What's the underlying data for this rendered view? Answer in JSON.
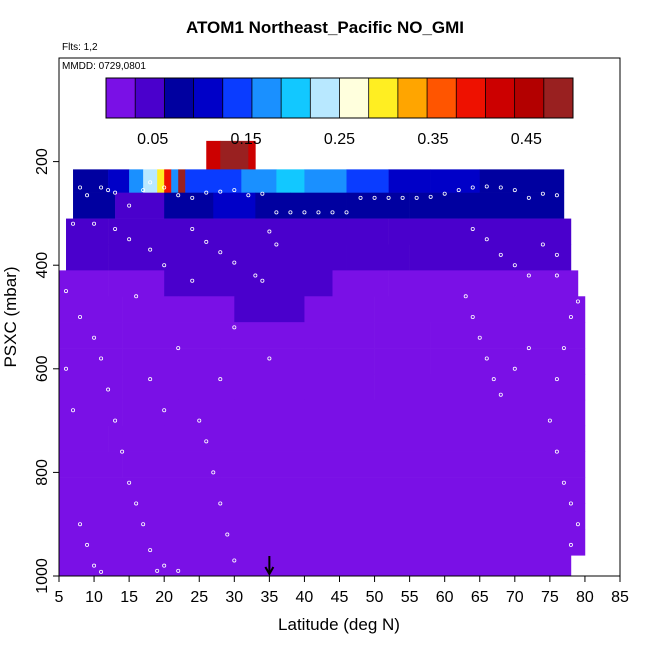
{
  "figure": {
    "title": "ATOM1 Northeast_Pacific NO_GMI",
    "flights_label": "Flts: 1,2",
    "date_label": "MMDD: 0729,0801"
  },
  "chart_data": {
    "type": "heatmap",
    "title": "ATOM1 Northeast_Pacific NO_GMI",
    "xlabel": "Latitude (deg N)",
    "ylabel": "PSXC (mbar)",
    "xlim": [
      5,
      85
    ],
    "ylim": [
      1000,
      0
    ],
    "x_ticks": [
      5,
      10,
      15,
      20,
      25,
      30,
      35,
      40,
      45,
      50,
      55,
      60,
      65,
      70,
      75,
      80,
      85
    ],
    "y_ticks": [
      200,
      400,
      600,
      800,
      1000
    ],
    "colorbar": {
      "range": [
        0,
        0.5
      ],
      "tick_values": [
        0.05,
        0.15,
        0.25,
        0.35,
        0.45
      ],
      "tick_labels": [
        "0.05",
        "0.15",
        "0.25",
        "0.35",
        "0.45"
      ],
      "colors": [
        "#7a10e6",
        "#4a00cc",
        "#0000a0",
        "#0000c8",
        "#0a3cff",
        "#1a90ff",
        "#12c8ff",
        "#b8e8ff",
        "#ffffdd",
        "#ffee22",
        "#ffa500",
        "#ff5500",
        "#ee1100",
        "#cc0000",
        "#b30000",
        "#992020"
      ]
    },
    "marker": {
      "latitude": 35,
      "direction": "down"
    },
    "layers": [
      {
        "p_top": 160,
        "p_bot": 215,
        "segments": [
          [
            26,
            28,
            0.42
          ],
          [
            28,
            32,
            0.48
          ],
          [
            32,
            33,
            0.43
          ]
        ]
      },
      {
        "p_top": 215,
        "p_bot": 260,
        "segments": [
          [
            7,
            12,
            0.08
          ],
          [
            12,
            15,
            0.11
          ],
          [
            15,
            17,
            0.16
          ],
          [
            17,
            19,
            0.22
          ],
          [
            19,
            20,
            0.3
          ],
          [
            20,
            21,
            0.38
          ],
          [
            21,
            22,
            0.18
          ],
          [
            22,
            23,
            0.47
          ],
          [
            23,
            27,
            0.14
          ],
          [
            27,
            31,
            0.15
          ],
          [
            31,
            36,
            0.18
          ],
          [
            36,
            40,
            0.2
          ],
          [
            40,
            46,
            0.17
          ],
          [
            46,
            52,
            0.14
          ],
          [
            52,
            58,
            0.12
          ],
          [
            58,
            65,
            0.1
          ],
          [
            65,
            72,
            0.09
          ],
          [
            72,
            77,
            0.08
          ]
        ]
      },
      {
        "p_top": 260,
        "p_bot": 310,
        "segments": [
          [
            7,
            13,
            0.07
          ],
          [
            13,
            20,
            0.06
          ],
          [
            20,
            27,
            0.08
          ],
          [
            27,
            33,
            0.1
          ],
          [
            33,
            38,
            0.09
          ],
          [
            38,
            46,
            0.08
          ],
          [
            46,
            55,
            0.07
          ],
          [
            55,
            62,
            0.075
          ],
          [
            62,
            70,
            0.08
          ],
          [
            70,
            77,
            0.09
          ]
        ]
      },
      {
        "p_top": 310,
        "p_bot": 360,
        "segments": [
          [
            6,
            12,
            0.055
          ],
          [
            12,
            20,
            0.045
          ],
          [
            20,
            28,
            0.06
          ],
          [
            28,
            36,
            0.055
          ],
          [
            36,
            44,
            0.05
          ],
          [
            44,
            52,
            0.045
          ],
          [
            52,
            60,
            0.05
          ],
          [
            60,
            68,
            0.045
          ],
          [
            68,
            78,
            0.05
          ]
        ]
      },
      {
        "p_top": 360,
        "p_bot": 410,
        "segments": [
          [
            6,
            12,
            0.035
          ],
          [
            12,
            22,
            0.04
          ],
          [
            22,
            30,
            0.05
          ],
          [
            30,
            38,
            0.045
          ],
          [
            38,
            46,
            0.04
          ],
          [
            46,
            55,
            0.045
          ],
          [
            55,
            62,
            0.04
          ],
          [
            62,
            70,
            0.035
          ],
          [
            70,
            78,
            0.04
          ]
        ]
      },
      {
        "p_top": 410,
        "p_bot": 460,
        "segments": [
          [
            5,
            12,
            0.02
          ],
          [
            12,
            20,
            0.025
          ],
          [
            20,
            28,
            0.035
          ],
          [
            28,
            36,
            0.04
          ],
          [
            36,
            44,
            0.035
          ],
          [
            44,
            52,
            0.03
          ],
          [
            52,
            60,
            0.025
          ],
          [
            60,
            70,
            0.02
          ],
          [
            70,
            79,
            0.02
          ]
        ]
      },
      {
        "p_top": 460,
        "p_bot": 510,
        "segments": [
          [
            5,
            14,
            0.015
          ],
          [
            14,
            22,
            0.02
          ],
          [
            22,
            30,
            0.028
          ],
          [
            30,
            40,
            0.032
          ],
          [
            40,
            50,
            0.025
          ],
          [
            50,
            60,
            0.02
          ],
          [
            60,
            70,
            0.015
          ],
          [
            70,
            80,
            0.012
          ]
        ]
      },
      {
        "p_top": 510,
        "p_bot": 560,
        "segments": [
          [
            5,
            14,
            0.012
          ],
          [
            14,
            22,
            0.018
          ],
          [
            22,
            30,
            0.025
          ],
          [
            30,
            40,
            0.03
          ],
          [
            40,
            50,
            0.025
          ],
          [
            50,
            58,
            0.02
          ],
          [
            58,
            70,
            0.012
          ],
          [
            70,
            80,
            0.01
          ]
        ]
      },
      {
        "p_top": 560,
        "p_bot": 610,
        "segments": [
          [
            5,
            14,
            0.01
          ],
          [
            14,
            22,
            0.015
          ],
          [
            22,
            28,
            0.022
          ],
          [
            28,
            35,
            0.03
          ],
          [
            35,
            42,
            0.025
          ],
          [
            42,
            50,
            0.02
          ],
          [
            50,
            58,
            0.015
          ],
          [
            58,
            70,
            0.01
          ],
          [
            70,
            80,
            0.008
          ]
        ]
      },
      {
        "p_top": 610,
        "p_bot": 660,
        "segments": [
          [
            5,
            14,
            0.008
          ],
          [
            14,
            22,
            0.012
          ],
          [
            22,
            30,
            0.018
          ],
          [
            30,
            40,
            0.015
          ],
          [
            40,
            50,
            0.01
          ],
          [
            50,
            80,
            0.006
          ]
        ]
      },
      {
        "p_top": 660,
        "p_bot": 710,
        "segments": [
          [
            5,
            14,
            0.006
          ],
          [
            14,
            22,
            0.01
          ],
          [
            22,
            30,
            0.012
          ],
          [
            30,
            40,
            0.01
          ],
          [
            40,
            80,
            0.005
          ]
        ]
      },
      {
        "p_top": 710,
        "p_bot": 760,
        "segments": [
          [
            5,
            12,
            0.005
          ],
          [
            12,
            20,
            0.01
          ],
          [
            20,
            28,
            0.008
          ],
          [
            28,
            80,
            0.004
          ]
        ]
      },
      {
        "p_top": 760,
        "p_bot": 810,
        "segments": [
          [
            5,
            14,
            0.004
          ],
          [
            14,
            28,
            0.006
          ],
          [
            28,
            80,
            0.003
          ]
        ]
      },
      {
        "p_top": 810,
        "p_bot": 860,
        "segments": [
          [
            5,
            80,
            0.003
          ]
        ]
      },
      {
        "p_top": 860,
        "p_bot": 910,
        "segments": [
          [
            5,
            80,
            0.002
          ]
        ]
      },
      {
        "p_top": 910,
        "p_bot": 960,
        "segments": [
          [
            5,
            80,
            0.002
          ]
        ]
      },
      {
        "p_top": 960,
        "p_bot": 1000,
        "segments": [
          [
            5,
            78,
            0.002
          ]
        ]
      }
    ],
    "flight_points": [
      [
        8,
        250
      ],
      [
        9,
        265
      ],
      [
        11,
        250
      ],
      [
        12,
        255
      ],
      [
        13,
        260
      ],
      [
        15,
        285
      ],
      [
        17,
        255
      ],
      [
        18,
        240
      ],
      [
        20,
        250
      ],
      [
        22,
        265
      ],
      [
        24,
        270
      ],
      [
        26,
        260
      ],
      [
        28,
        258
      ],
      [
        30,
        255
      ],
      [
        32,
        265
      ],
      [
        34,
        262
      ],
      [
        36,
        298
      ],
      [
        38,
        298
      ],
      [
        40,
        298
      ],
      [
        42,
        298
      ],
      [
        44,
        298
      ],
      [
        46,
        298
      ],
      [
        48,
        270
      ],
      [
        50,
        270
      ],
      [
        52,
        270
      ],
      [
        54,
        270
      ],
      [
        56,
        270
      ],
      [
        58,
        268
      ],
      [
        60,
        262
      ],
      [
        62,
        255
      ],
      [
        64,
        250
      ],
      [
        66,
        248
      ],
      [
        68,
        250
      ],
      [
        70,
        255
      ],
      [
        72,
        270
      ],
      [
        74,
        262
      ],
      [
        76,
        265
      ],
      [
        7,
        320
      ],
      [
        10,
        320
      ],
      [
        13,
        330
      ],
      [
        15,
        350
      ],
      [
        18,
        370
      ],
      [
        20,
        400
      ],
      [
        24,
        330
      ],
      [
        26,
        355
      ],
      [
        28,
        375
      ],
      [
        30,
        395
      ],
      [
        35,
        335
      ],
      [
        36,
        360
      ],
      [
        33,
        420
      ],
      [
        34,
        430
      ],
      [
        64,
        330
      ],
      [
        66,
        350
      ],
      [
        68,
        380
      ],
      [
        70,
        400
      ],
      [
        72,
        420
      ],
      [
        74,
        360
      ],
      [
        76,
        380
      ],
      [
        6,
        450
      ],
      [
        8,
        500
      ],
      [
        10,
        540
      ],
      [
        11,
        580
      ],
      [
        12,
        640
      ],
      [
        13,
        700
      ],
      [
        14,
        760
      ],
      [
        15,
        820
      ],
      [
        16,
        860
      ],
      [
        17,
        900
      ],
      [
        18,
        950
      ],
      [
        19,
        990
      ],
      [
        8,
        900
      ],
      [
        9,
        940
      ],
      [
        10,
        980
      ],
      [
        11,
        992
      ],
      [
        6,
        600
      ],
      [
        7,
        680
      ],
      [
        20,
        980
      ],
      [
        22,
        990
      ],
      [
        25,
        700
      ],
      [
        26,
        740
      ],
      [
        27,
        800
      ],
      [
        28,
        860
      ],
      [
        29,
        920
      ],
      [
        30,
        970
      ],
      [
        63,
        460
      ],
      [
        64,
        500
      ],
      [
        65,
        540
      ],
      [
        66,
        580
      ],
      [
        67,
        620
      ],
      [
        68,
        650
      ],
      [
        70,
        600
      ],
      [
        72,
        560
      ],
      [
        75,
        700
      ],
      [
        76,
        760
      ],
      [
        77,
        820
      ],
      [
        78,
        860
      ],
      [
        79,
        900
      ],
      [
        78,
        940
      ],
      [
        79,
        980
      ],
      [
        76,
        620
      ],
      [
        77,
        560
      ],
      [
        78,
        500
      ],
      [
        79,
        470
      ],
      [
        76,
        420
      ],
      [
        35,
        580
      ],
      [
        28,
        620
      ],
      [
        30,
        520
      ],
      [
        22,
        560
      ],
      [
        24,
        430
      ],
      [
        16,
        460
      ],
      [
        18,
        620
      ],
      [
        20,
        680
      ]
    ]
  }
}
